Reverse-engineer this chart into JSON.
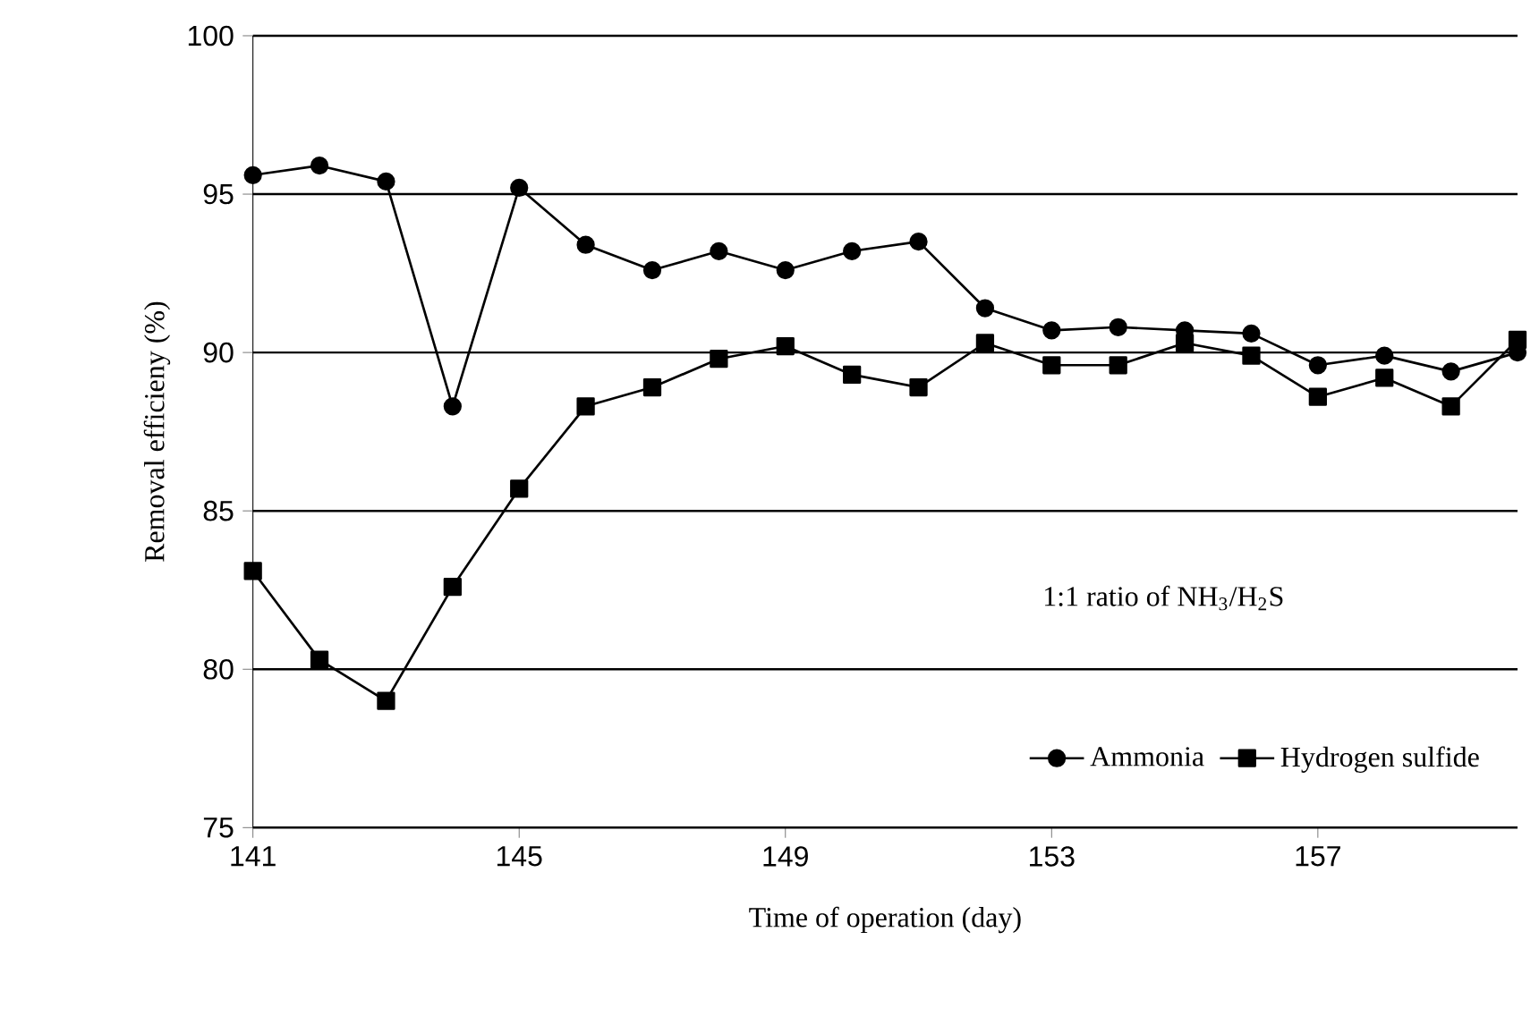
{
  "chart_data": {
    "type": "line",
    "xlabel": "Time of operation (day)",
    "ylabel": "Removal efficieny (%)",
    "x": [
      141,
      142,
      143,
      144,
      145,
      146,
      147,
      148,
      149,
      150,
      151,
      152,
      153,
      154,
      155,
      156,
      157,
      158,
      159,
      160
    ],
    "series": [
      {
        "name": "Ammonia",
        "color": "#000000",
        "marker": "circle",
        "values": [
          95.6,
          95.9,
          95.4,
          88.3,
          95.2,
          93.4,
          92.6,
          93.2,
          92.6,
          93.2,
          93.5,
          91.4,
          90.7,
          90.8,
          90.7,
          90.6,
          89.6,
          89.9,
          89.4,
          90.0
        ]
      },
      {
        "name": "Hydrogen sulfide",
        "color": "#000000",
        "marker": "square",
        "values": [
          83.1,
          80.3,
          79.0,
          82.6,
          85.7,
          88.3,
          88.9,
          89.8,
          90.2,
          89.3,
          88.9,
          90.3,
          89.6,
          89.6,
          90.3,
          89.9,
          88.6,
          89.2,
          88.3,
          90.4
        ]
      }
    ],
    "xlim": [
      141,
      160
    ],
    "ylim": [
      75,
      100
    ],
    "xticks": [
      141,
      145,
      149,
      153,
      157
    ],
    "yticks": [
      75,
      80,
      85,
      90,
      95,
      100
    ],
    "grid": "y",
    "legend": "bottom right",
    "line_style": "solid",
    "annotations": [
      "1:1 ratio of NH$_{3}$/H$_{2}$S"
    ]
  }
}
